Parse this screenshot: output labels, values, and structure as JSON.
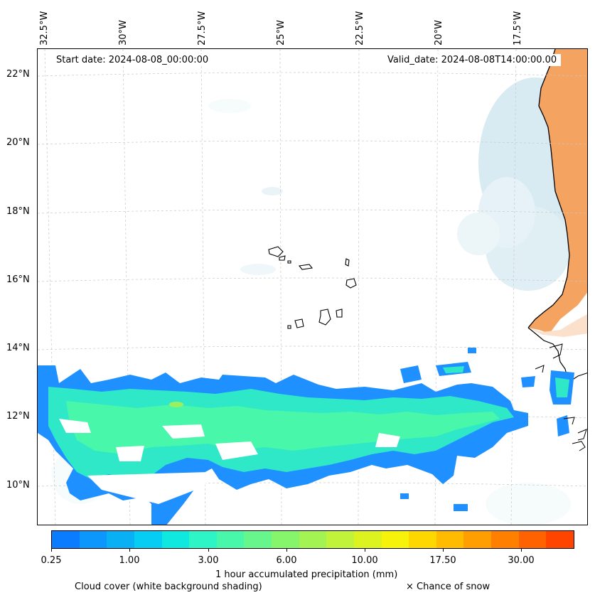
{
  "map": {
    "start_date": "Start date: 2024-08-08_00:00:00",
    "valid_date": "Valid_date: 2024-08-08T14:00:00.00",
    "lon_labels": [
      "32.5°W",
      "30°W",
      "27.5°W",
      "25°W",
      "22.5°W",
      "20°W",
      "17.5°W"
    ],
    "lat_labels": [
      "22°N",
      "20°N",
      "18°N",
      "16°N",
      "14°N",
      "12°N",
      "10°N"
    ],
    "grid": "dashed"
  },
  "colorbar": {
    "title": "1 hour accumulated precipitation (mm)",
    "tick_labels": [
      "0.25",
      "1.00",
      "3.00",
      "6.00",
      "10.00",
      "17.50",
      "30.00"
    ],
    "colors": [
      "#0a7cff",
      "#0b97fb",
      "#0ab0f4",
      "#06cdf4",
      "#0fe8de",
      "#2ef5c6",
      "#49f7aa",
      "#67f68c",
      "#86f56c",
      "#a3f452",
      "#c0f33a",
      "#dcf320",
      "#f7f20a",
      "#ffd700",
      "#ffbb00",
      "#ff9e00",
      "#ff8000",
      "#ff6200",
      "#ff4400"
    ]
  },
  "legend": {
    "cloud_cover": "Cloud cover (white background shading)",
    "snow": "× Chance of snow"
  },
  "colors": {
    "precip_low": "#1e90ff",
    "precip_mid": "#2ee8c8",
    "precip_high": "#9cf060",
    "land_warm": "#f4a460",
    "cloud_shade": "#add8e6"
  }
}
